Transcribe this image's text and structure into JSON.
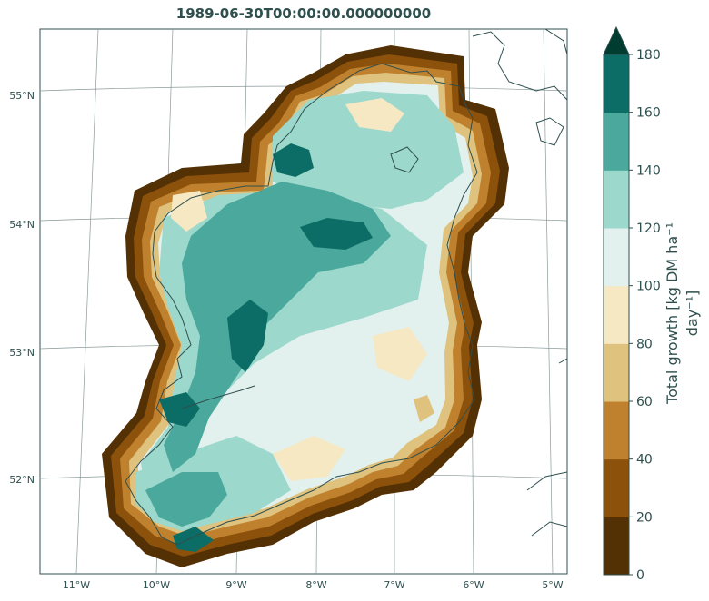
{
  "title": "1989-06-30T00:00:00.000000000",
  "map": {
    "lon_ticks": [
      "11°W",
      "10°W",
      "9°W",
      "8°W",
      "7°W",
      "6°W",
      "5°W"
    ],
    "lat_ticks": [
      "55°N",
      "54°N",
      "53°N",
      "52°N"
    ],
    "land_outline_color": "#2f4f4f"
  },
  "colorbar": {
    "label_line1": "Total growth [kg DM ha⁻¹",
    "label_line2": "day⁻¹]",
    "ticks": [
      "0",
      "20",
      "40",
      "60",
      "80",
      "100",
      "120",
      "140",
      "160",
      "180"
    ],
    "colors": [
      "#543005",
      "#8c510a",
      "#bf812d",
      "#dfc27d",
      "#f6e8c3",
      "#e2f1ee",
      "#9cd8cc",
      "#4aa89c",
      "#0b6d65",
      "#003c30"
    ],
    "extend": "max"
  }
}
